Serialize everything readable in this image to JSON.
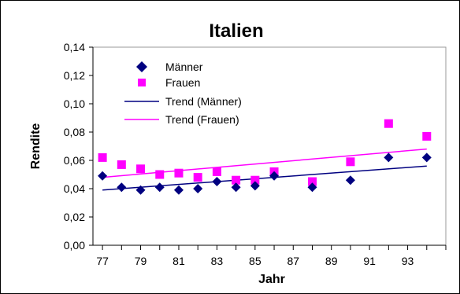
{
  "chart_data": {
    "type": "scatter",
    "title": "Italien",
    "xlabel": "Jahr",
    "ylabel": "Rendite",
    "xlim": [
      76.5,
      95.0
    ],
    "ylim": [
      0.0,
      0.14
    ],
    "x_ticks": [
      "77",
      "79",
      "81",
      "83",
      "85",
      "87",
      "89",
      "91",
      "93"
    ],
    "y_ticks": [
      "0,00",
      "0,02",
      "0,04",
      "0,06",
      "0,08",
      "0,10",
      "0,12",
      "0,14"
    ],
    "grid": false,
    "legend_position": "inside-top-left",
    "series": [
      {
        "name": "Männer",
        "marker": "diamond",
        "color": "#000080",
        "points": [
          [
            77,
            0.049
          ],
          [
            78,
            0.041
          ],
          [
            79,
            0.039
          ],
          [
            80,
            0.041
          ],
          [
            81,
            0.039
          ],
          [
            82,
            0.04
          ],
          [
            83,
            0.045
          ],
          [
            84,
            0.041
          ],
          [
            85,
            0.042
          ],
          [
            86,
            0.049
          ],
          [
            88,
            0.041
          ],
          [
            90,
            0.046
          ],
          [
            92,
            0.062
          ],
          [
            94,
            0.062
          ]
        ]
      },
      {
        "name": "Frauen",
        "marker": "square",
        "color": "#FF00FF",
        "points": [
          [
            77,
            0.062
          ],
          [
            78,
            0.057
          ],
          [
            79,
            0.054
          ],
          [
            80,
            0.05
          ],
          [
            81,
            0.051
          ],
          [
            82,
            0.048
          ],
          [
            83,
            0.052
          ],
          [
            84,
            0.046
          ],
          [
            85,
            0.046
          ],
          [
            86,
            0.052
          ],
          [
            88,
            0.045
          ],
          [
            90,
            0.059
          ],
          [
            92,
            0.086
          ],
          [
            94,
            0.077
          ]
        ]
      }
    ],
    "trends": [
      {
        "name": "Trend (Männer)",
        "color": "#000080",
        "from": [
          77,
          0.039
        ],
        "to": [
          94,
          0.056
        ]
      },
      {
        "name": "Trend (Frauen)",
        "color": "#FF00FF",
        "from": [
          77,
          0.048
        ],
        "to": [
          94,
          0.068
        ]
      }
    ]
  }
}
